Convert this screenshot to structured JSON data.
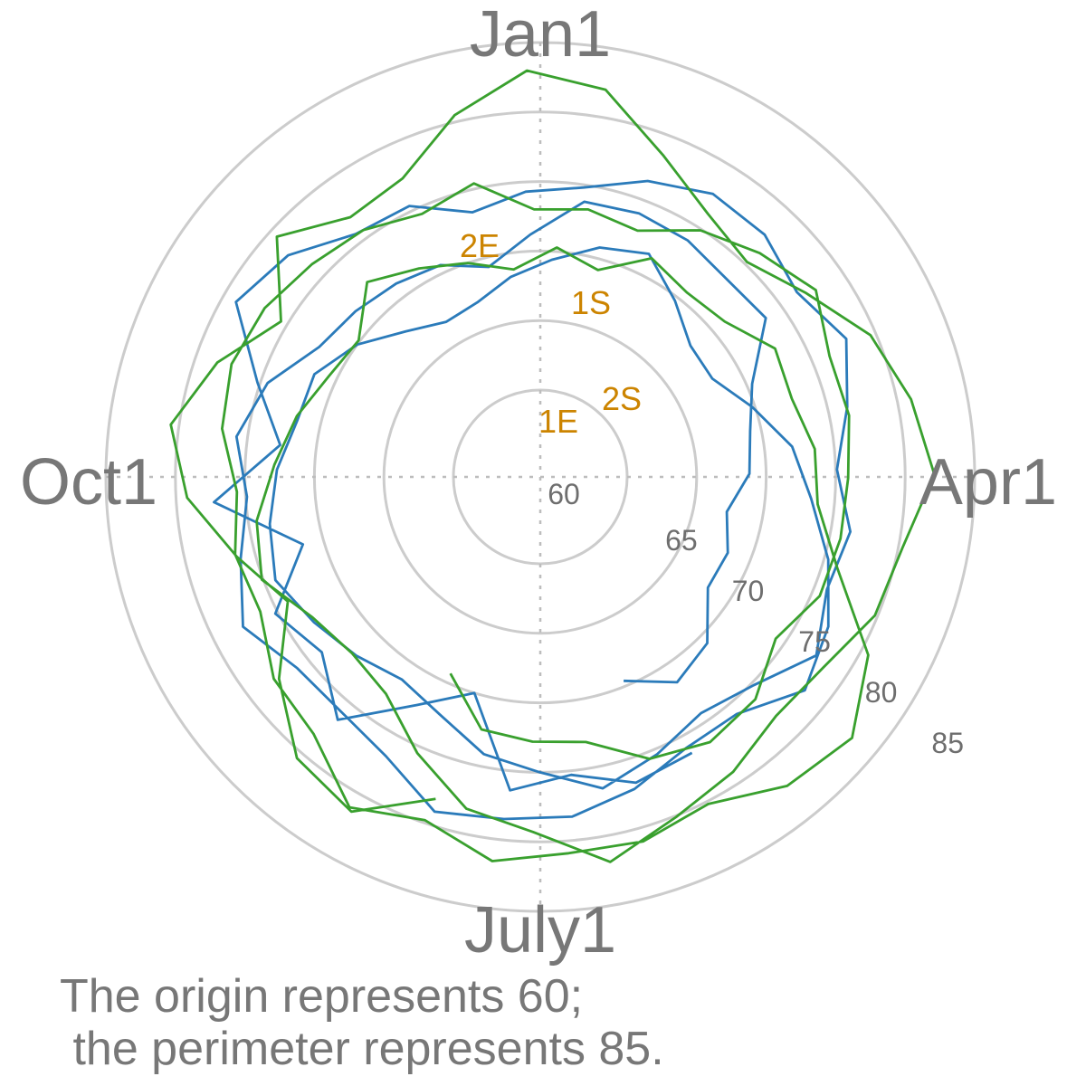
{
  "chart_data": {
    "type": "polar-line",
    "theta_labels": [
      "Jan1",
      "Apr1",
      "July1",
      "Oct1"
    ],
    "radial_range": [
      60,
      85
    ],
    "radial_ticks": [
      60,
      65,
      70,
      75,
      80,
      85
    ],
    "grid": true,
    "caption_line1": "The origin represents 60;",
    "caption_line2": " the perimeter represents 85.",
    "series": [
      {
        "color": "#2b7bba",
        "values": [
          76.4,
          76.8,
          75.3,
          76.4,
          70.0,
          72.4,
          76.5,
          73.9,
          75.2,
          71.5,
          77.3,
          72.6,
          75.2,
          79.0,
          77.9,
          75.7,
          75.4,
          73.4,
          74.3,
          74.8,
          76.4,
          77.6,
          77.5,
          76.5,
          77.9,
          76.4,
          75.1,
          76.4,
          75.9,
          77.4,
          75.2,
          74.3,
          75.4,
          76.6,
          75.0,
          74.1,
          72.3,
          71.4,
          72.2,
          73.1,
          74.2,
          73.5,
          72.7,
          71.7,
          71.6,
          70.0,
          68.0,
          66.8,
          67.1,
          68.3,
          69.4,
          70.8,
          71.6,
          69.7,
          68.1,
          68.0,
          69.8,
          72.0,
          73.3,
          75.3,
          77.1,
          78.2,
          75.9,
          75.9,
          77.2,
          78.3,
          78.5,
          79.0,
          76.7,
          75.9,
          76.0,
          77.7,
          76.1,
          74.9,
          75.8,
          74.5,
          72.2,
          71.6,
          71.1,
          70.6,
          69.3,
          71.2,
          73.8,
          74.0,
          73.8,
          73.3,
          73.6,
          70.4,
          69.2,
          68.8,
          67.4,
          68.3,
          68.2,
          70.7,
          71.5,
          69.6
        ],
        "mark_start": "1S",
        "mark_end": "1E"
      },
      {
        "color": "#39a02e",
        "values": [
          78.1,
          81.4,
          80.5,
          77.5,
          74.0,
          76.3,
          79.2,
          80.6,
          78.4,
          75.5,
          79.4,
          76.9,
          77.4,
          80.5,
          83.0,
          82.0,
          78.5,
          76.2,
          75.2,
          77.0,
          79.6,
          81.0,
          82.1,
          80.3,
          79.8,
          78.3,
          77.9,
          79.1,
          80.1,
          81.9,
          79.3,
          78.2,
          75.5,
          72.9,
          72.3,
          73.0,
          75.1,
          74.4,
          72.9,
          71.8,
          70.6,
          70.1,
          72.5,
          71.1,
          70.0,
          68.8,
          70.3,
          69.2,
          71.4,
          70.7,
          71.1,
          73.0,
          72.7,
          73.6,
          73.8,
          76.1,
          80.6,
          83.0,
          82.2,
          80.2,
          81.0,
          80.9,
          81.6,
          79.8,
          81.2,
          78.4,
          77.8,
          76.1,
          76.4,
          75.6,
          76.9,
          77.4,
          77.0,
          76.2,
          75.6,
          74.5,
          75.4,
          73.0,
          73.3,
          72.8,
          74.9,
          76.3,
          77.7,
          76.3,
          76.4,
          75.9,
          75.8,
          75.6,
          74.3,
          76.0,
          76.4,
          75.5,
          73.1,
          72.8,
          72.4,
          69.3
        ],
        "mark_start": "2S",
        "mark_end": "2E"
      }
    ]
  }
}
